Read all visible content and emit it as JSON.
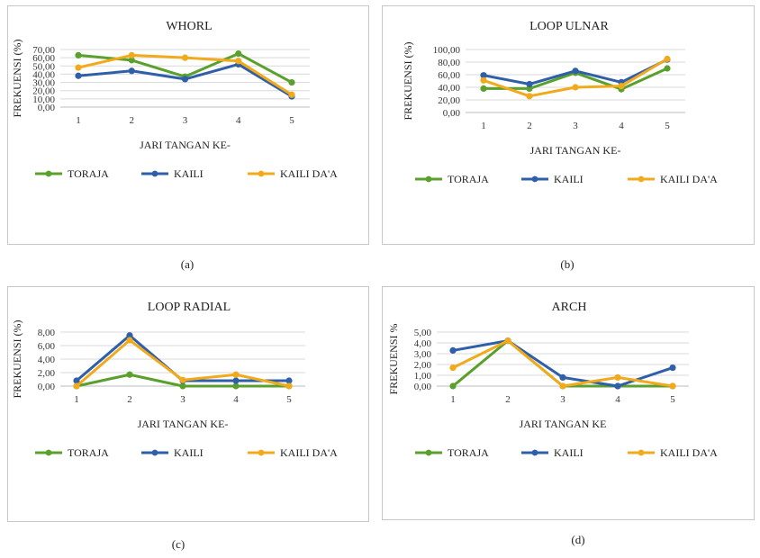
{
  "chart_data": [
    {
      "type": "line",
      "title": "WHORL",
      "xlabel": "JARI TANGAN KE-",
      "ylabel": "FREKUENSI (%)",
      "caption": "(a)",
      "categories": [
        "1",
        "2",
        "3",
        "4",
        "5"
      ],
      "ylim": [
        0,
        70
      ],
      "yticks": [
        "0,00",
        "10,00",
        "20,00",
        "30,00",
        "40,00",
        "50,00",
        "60,00",
        "70,00"
      ],
      "grid": true,
      "legend": "bottom",
      "series": [
        {
          "name": "TORAJA",
          "color": "#5aa02c",
          "values": [
            63,
            57,
            37,
            65,
            30
          ]
        },
        {
          "name": "KAILI",
          "color": "#2e5fa8",
          "values": [
            38,
            44,
            34,
            52,
            13
          ]
        },
        {
          "name": "KAILI DA'A",
          "color": "#f0aa1c",
          "values": [
            48,
            63,
            60,
            56,
            15
          ]
        }
      ]
    },
    {
      "type": "line",
      "title": "LOOP ULNAR",
      "xlabel": "JARI TANGAN KE-",
      "ylabel": "FREKUENSI (%)",
      "caption": "(b)",
      "categories": [
        "1",
        "2",
        "3",
        "4",
        "5"
      ],
      "ylim": [
        0,
        100
      ],
      "yticks": [
        "0,00",
        "20,00",
        "40,00",
        "60,00",
        "80,00",
        "100,00"
      ],
      "grid": true,
      "legend": "bottom",
      "series": [
        {
          "name": "TORAJA",
          "color": "#5aa02c",
          "values": [
            38,
            38,
            63,
            37,
            70
          ]
        },
        {
          "name": "KAILI",
          "color": "#2e5fa8",
          "values": [
            59,
            45,
            66,
            48,
            84
          ]
        },
        {
          "name": "KAILI DA'A",
          "color": "#f0aa1c",
          "values": [
            51,
            26,
            40,
            42,
            85
          ]
        }
      ]
    },
    {
      "type": "line",
      "title": "LOOP RADIAL",
      "xlabel": "JARI TANGAN KE-",
      "ylabel": "FREKUENSI (%)",
      "caption": "(c)",
      "categories": [
        "1",
        "2",
        "3",
        "4",
        "5"
      ],
      "ylim": [
        0,
        8
      ],
      "yticks": [
        "0,00",
        "2,00",
        "4,00",
        "6,00",
        "8,00"
      ],
      "grid": true,
      "legend": "bottom",
      "series": [
        {
          "name": "TORAJA",
          "color": "#5aa02c",
          "values": [
            0,
            1.7,
            0,
            0,
            0
          ]
        },
        {
          "name": "KAILI",
          "color": "#2e5fa8",
          "values": [
            0.8,
            7.5,
            0.8,
            0.8,
            0.8
          ]
        },
        {
          "name": "KAILI DA'A",
          "color": "#f0aa1c",
          "values": [
            0,
            6.8,
            0.9,
            1.7,
            0
          ]
        }
      ]
    },
    {
      "type": "line",
      "title": "ARCH",
      "xlabel": "JARI TANGAN KE",
      "ylabel": "FREKUENSI %",
      "caption": "(d)",
      "categories": [
        "1",
        "2",
        "3",
        "4",
        "5"
      ],
      "ylim": [
        0,
        5
      ],
      "yticks": [
        "0,00",
        "1,00",
        "2,00",
        "3,00",
        "4,00",
        "5,00"
      ],
      "grid": true,
      "legend": "bottom",
      "series": [
        {
          "name": "TORAJA",
          "color": "#5aa02c",
          "values": [
            0,
            4.2,
            0,
            0,
            0
          ]
        },
        {
          "name": "KAILI",
          "color": "#2e5fa8",
          "values": [
            3.3,
            4.2,
            0.8,
            0,
            1.7
          ]
        },
        {
          "name": "KAILI DA'A",
          "color": "#f0aa1c",
          "values": [
            1.7,
            4.2,
            0,
            0.8,
            0
          ]
        }
      ]
    }
  ]
}
